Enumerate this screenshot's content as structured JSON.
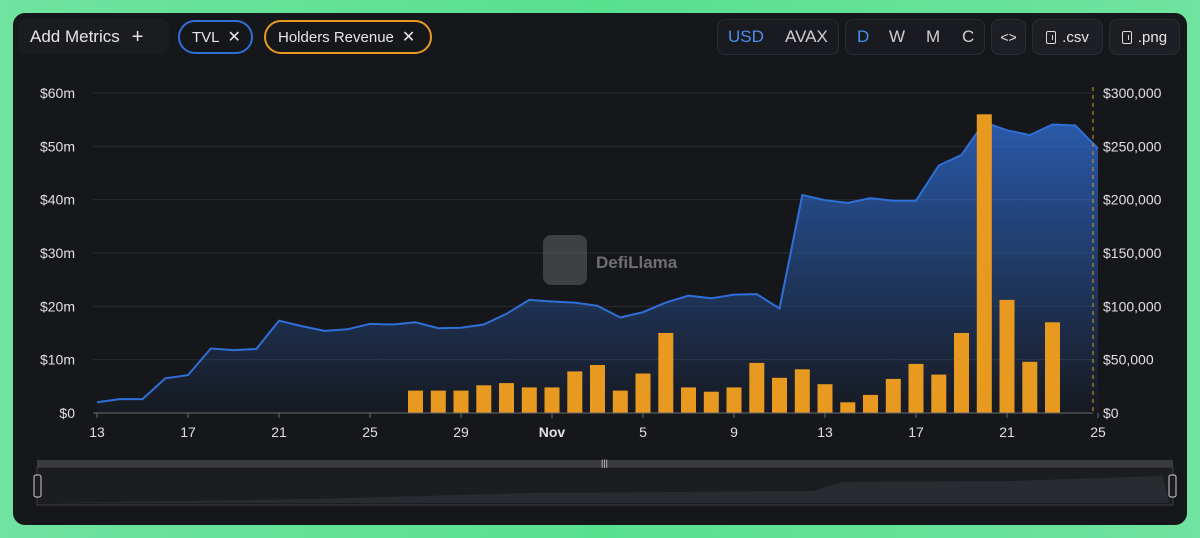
{
  "toolbar": {
    "add_metrics_label": "Add Metrics",
    "add_icon": "plus-icon",
    "pills": [
      {
        "label": "TVL",
        "color": "#2f6fd8"
      },
      {
        "label": "Holders Revenue",
        "color": "#e89a20"
      }
    ],
    "currency": {
      "options": [
        "USD",
        "AVAX"
      ],
      "selected": "USD"
    },
    "period": {
      "options": [
        "D",
        "W",
        "M",
        "C"
      ],
      "selected": "D"
    },
    "embed_label": "<>",
    "csv_label": ".csv",
    "png_label": ".png"
  },
  "watermark": {
    "text": "DefiLlama"
  },
  "colors": {
    "tvl": "#2f6fd8",
    "revenue": "#e89a20",
    "selected_accent": "#4a8ef0"
  },
  "chart_data": {
    "type": "bar+area",
    "x_ticks": [
      "13",
      "17",
      "21",
      "25",
      "29",
      "Nov",
      "5",
      "9",
      "13",
      "17",
      "21",
      "25"
    ],
    "left_axis": {
      "label": "TVL",
      "ticks": [
        "$0",
        "$10m",
        "$20m",
        "$30m",
        "$40m",
        "$50m",
        "$60m"
      ],
      "range": [
        0,
        60000000
      ]
    },
    "right_axis": {
      "label": "Holders Revenue",
      "ticks": [
        "$0",
        "$50,000",
        "$100,000",
        "$150,000",
        "$200,000",
        "$250,000",
        "$300,000"
      ],
      "range": [
        0,
        300000
      ]
    },
    "tvl": {
      "name": "TVL",
      "values": [
        2.0,
        2.6,
        2.6,
        6.5,
        7.1,
        12.1,
        11.8,
        12.0,
        17.3,
        16.3,
        15.4,
        15.7,
        16.7,
        16.6,
        17.0,
        15.9,
        16.0,
        16.6,
        18.6,
        21.2,
        20.9,
        20.7,
        20.1,
        17.9,
        18.9,
        20.7,
        22.0,
        21.5,
        22.2,
        22.3,
        19.6,
        40.9,
        39.9,
        39.4,
        40.3,
        39.8,
        39.8,
        46.4,
        48.4,
        54.5,
        53.0,
        52.1,
        54.1,
        53.9,
        49.6
      ]
    },
    "holders_revenue": {
      "name": "Holders Revenue",
      "start_index": 14,
      "values": [
        21000,
        21000,
        21000,
        26000,
        28000,
        24000,
        24000,
        39000,
        45000,
        21000,
        37000,
        75000,
        24000,
        20000,
        24000,
        47000,
        33000,
        41000,
        27000,
        10000,
        17000,
        32000,
        46000,
        36000,
        75000,
        280000,
        106000,
        48000,
        85000
      ]
    }
  }
}
